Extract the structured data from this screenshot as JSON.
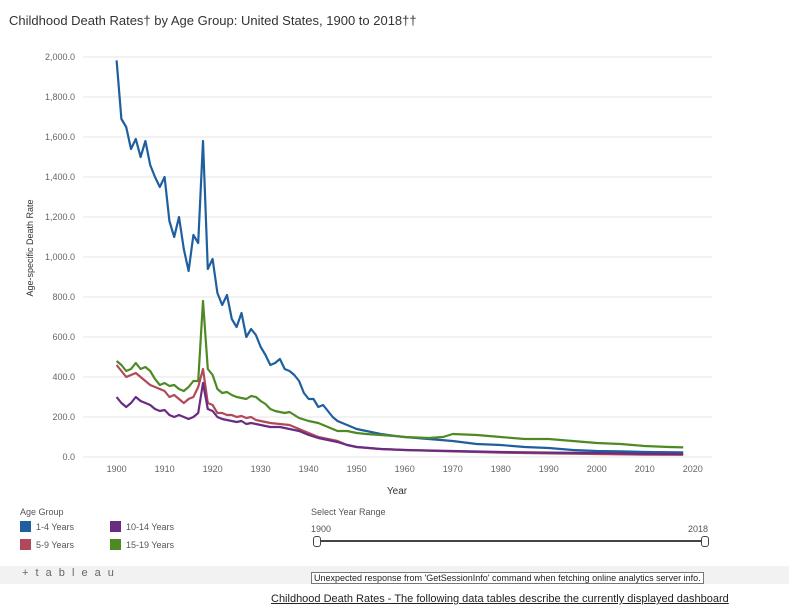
{
  "title": "Childhood Death Rates† by Age Group: United States, 1900 to 2018††",
  "colors": {
    "1-4": "#1f5fa0",
    "5-9": "#b04a5a",
    "10-14": "#6a2c80",
    "15-19": "#4e8a23",
    "grid": "#e6e6e6"
  },
  "chart_data": {
    "type": "line",
    "xlabel": "Year",
    "ylabel": "Age-specific Death Rate",
    "xlim": [
      1893,
      2024
    ],
    "ylim": [
      0,
      2000
    ],
    "x_ticks": [
      "1900",
      "1910",
      "1920",
      "1930",
      "1940",
      "1950",
      "1960",
      "1970",
      "1980",
      "1990",
      "2000",
      "2010",
      "2020"
    ],
    "y_ticks": [
      "0.0",
      "200.0",
      "400.0",
      "600.0",
      "800.0",
      "1,000.0",
      "1,200.0",
      "1,400.0",
      "1,600.0",
      "1,800.0",
      "2,000.0"
    ],
    "series": [
      {
        "name": "1-4 Years",
        "color": "#1f5fa0",
        "x": [
          1900,
          1901,
          1902,
          1903,
          1904,
          1905,
          1906,
          1907,
          1908,
          1909,
          1910,
          1911,
          1912,
          1913,
          1914,
          1915,
          1916,
          1917,
          1918,
          1919,
          1920,
          1921,
          1922,
          1923,
          1924,
          1925,
          1926,
          1927,
          1928,
          1929,
          1930,
          1931,
          1932,
          1933,
          1934,
          1935,
          1936,
          1937,
          1938,
          1939,
          1940,
          1941,
          1942,
          1943,
          1944,
          1945,
          1946,
          1948,
          1950,
          1952,
          1955,
          1958,
          1960,
          1965,
          1970,
          1975,
          1980,
          1985,
          1990,
          1995,
          2000,
          2005,
          2010,
          2015,
          2018
        ],
        "y": [
          1983,
          1690,
          1650,
          1540,
          1590,
          1500,
          1580,
          1460,
          1400,
          1350,
          1400,
          1180,
          1100,
          1200,
          1040,
          930,
          1110,
          1070,
          1580,
          940,
          990,
          820,
          760,
          810,
          690,
          650,
          720,
          600,
          640,
          610,
          550,
          510,
          460,
          470,
          490,
          440,
          430,
          410,
          380,
          320,
          290,
          290,
          250,
          260,
          230,
          200,
          180,
          160,
          140,
          130,
          115,
          105,
          100,
          90,
          80,
          65,
          60,
          50,
          45,
          35,
          30,
          28,
          25,
          24,
          23
        ]
      },
      {
        "name": "15-19 Years",
        "color": "#4e8a23",
        "x": [
          1900,
          1901,
          1902,
          1903,
          1904,
          1905,
          1906,
          1907,
          1908,
          1909,
          1910,
          1911,
          1912,
          1913,
          1914,
          1915,
          1916,
          1917,
          1918,
          1919,
          1920,
          1921,
          1922,
          1923,
          1924,
          1925,
          1926,
          1927,
          1928,
          1929,
          1930,
          1931,
          1932,
          1933,
          1934,
          1935,
          1936,
          1937,
          1938,
          1940,
          1942,
          1944,
          1946,
          1948,
          1950,
          1952,
          1955,
          1958,
          1960,
          1965,
          1968,
          1970,
          1975,
          1980,
          1985,
          1990,
          1995,
          2000,
          2005,
          2010,
          2015,
          2018
        ],
        "y": [
          480,
          460,
          430,
          440,
          470,
          440,
          450,
          430,
          390,
          360,
          370,
          355,
          360,
          340,
          330,
          350,
          380,
          380,
          780,
          440,
          410,
          340,
          320,
          325,
          310,
          300,
          295,
          290,
          305,
          300,
          280,
          265,
          240,
          230,
          225,
          220,
          225,
          210,
          195,
          180,
          170,
          150,
          130,
          130,
          120,
          115,
          110,
          105,
          100,
          95,
          100,
          115,
          110,
          100,
          90,
          90,
          80,
          70,
          65,
          55,
          50,
          48
        ]
      },
      {
        "name": "5-9 Years",
        "color": "#b04a5a",
        "x": [
          1900,
          1901,
          1902,
          1903,
          1904,
          1905,
          1906,
          1907,
          1908,
          1909,
          1910,
          1911,
          1912,
          1913,
          1914,
          1915,
          1916,
          1917,
          1918,
          1919,
          1920,
          1921,
          1922,
          1923,
          1924,
          1925,
          1926,
          1927,
          1928,
          1929,
          1930,
          1932,
          1934,
          1936,
          1938,
          1940,
          1942,
          1944,
          1946,
          1948,
          1950,
          1955,
          1960,
          1970,
          1980,
          1990,
          2000,
          2010,
          2018
        ],
        "y": [
          460,
          430,
          400,
          410,
          420,
          400,
          380,
          360,
          350,
          340,
          330,
          300,
          310,
          290,
          270,
          290,
          300,
          350,
          440,
          270,
          260,
          220,
          220,
          210,
          210,
          200,
          205,
          195,
          200,
          185,
          180,
          170,
          165,
          160,
          140,
          120,
          100,
          90,
          80,
          60,
          50,
          40,
          35,
          28,
          22,
          18,
          15,
          12,
          11
        ]
      },
      {
        "name": "10-14 Years",
        "color": "#6a2c80",
        "x": [
          1900,
          1901,
          1902,
          1903,
          1904,
          1905,
          1906,
          1907,
          1908,
          1909,
          1910,
          1911,
          1912,
          1913,
          1914,
          1915,
          1916,
          1917,
          1918,
          1919,
          1920,
          1921,
          1922,
          1923,
          1924,
          1925,
          1926,
          1927,
          1928,
          1929,
          1930,
          1932,
          1934,
          1936,
          1938,
          1940,
          1942,
          1944,
          1946,
          1948,
          1950,
          1955,
          1960,
          1970,
          1980,
          1990,
          2000,
          2010,
          2018
        ],
        "y": [
          300,
          270,
          250,
          270,
          300,
          280,
          270,
          260,
          240,
          230,
          235,
          210,
          200,
          210,
          200,
          190,
          200,
          220,
          370,
          240,
          230,
          200,
          190,
          185,
          180,
          175,
          180,
          165,
          170,
          165,
          160,
          150,
          150,
          140,
          130,
          110,
          95,
          85,
          75,
          60,
          50,
          40,
          35,
          30,
          25,
          22,
          20,
          16,
          15
        ]
      }
    ]
  },
  "legend": {
    "title": "Age Group",
    "items": [
      {
        "label": "1-4 Years",
        "color": "#1f5fa0"
      },
      {
        "label": "10-14 Years",
        "color": "#6a2c80"
      },
      {
        "label": "5-9 Years",
        "color": "#b04a5a"
      },
      {
        "label": "15-19 Years",
        "color": "#4e8a23"
      }
    ]
  },
  "year_range": {
    "label": "Select Year Range",
    "start": "1900",
    "end": "2018"
  },
  "footer": {
    "logo": "+ t a b l e a u",
    "error": "Unexpected response from 'GetSessionInfo' command when fetching online analytics server info.",
    "link": "Childhood Death Rates - The following data tables describe the currently displayed dashboard"
  }
}
